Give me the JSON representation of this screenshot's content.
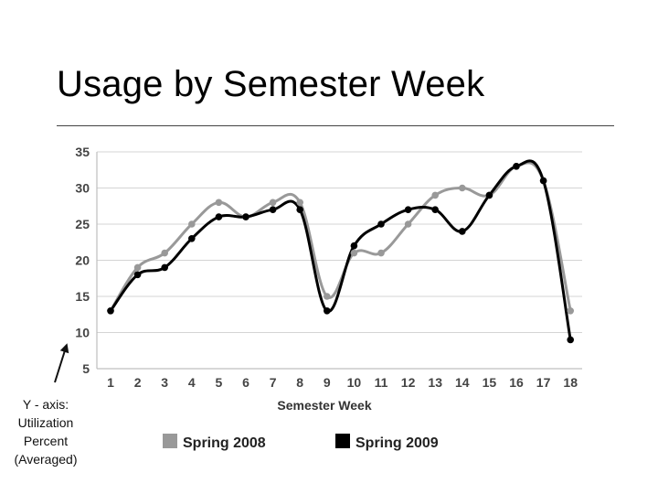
{
  "slide": {
    "title": "Usage by Semester Week",
    "annotation_lines": [
      "Y - axis:",
      "Utilization",
      "Percent",
      "(Averaged)"
    ]
  },
  "chart_data": {
    "type": "line",
    "title": "",
    "xlabel": "Semester Week",
    "ylabel": "",
    "x": [
      1,
      2,
      3,
      4,
      5,
      6,
      7,
      8,
      9,
      10,
      11,
      12,
      13,
      14,
      15,
      16,
      17,
      18
    ],
    "ylim": [
      5,
      35
    ],
    "yticks": [
      5,
      10,
      15,
      20,
      25,
      30,
      35
    ],
    "grid": true,
    "legend": "bottom",
    "series": [
      {
        "name": "Spring 2008",
        "color": "#999999",
        "values": [
          13,
          19,
          21,
          25,
          28,
          26,
          28,
          28,
          15,
          21,
          21,
          25,
          29,
          30,
          29,
          33,
          31,
          13
        ]
      },
      {
        "name": "Spring 2009",
        "color": "#000000",
        "values": [
          13,
          18,
          19,
          23,
          26,
          26,
          27,
          27,
          13,
          22,
          25,
          27,
          27,
          24,
          29,
          33,
          31,
          9
        ]
      }
    ]
  }
}
